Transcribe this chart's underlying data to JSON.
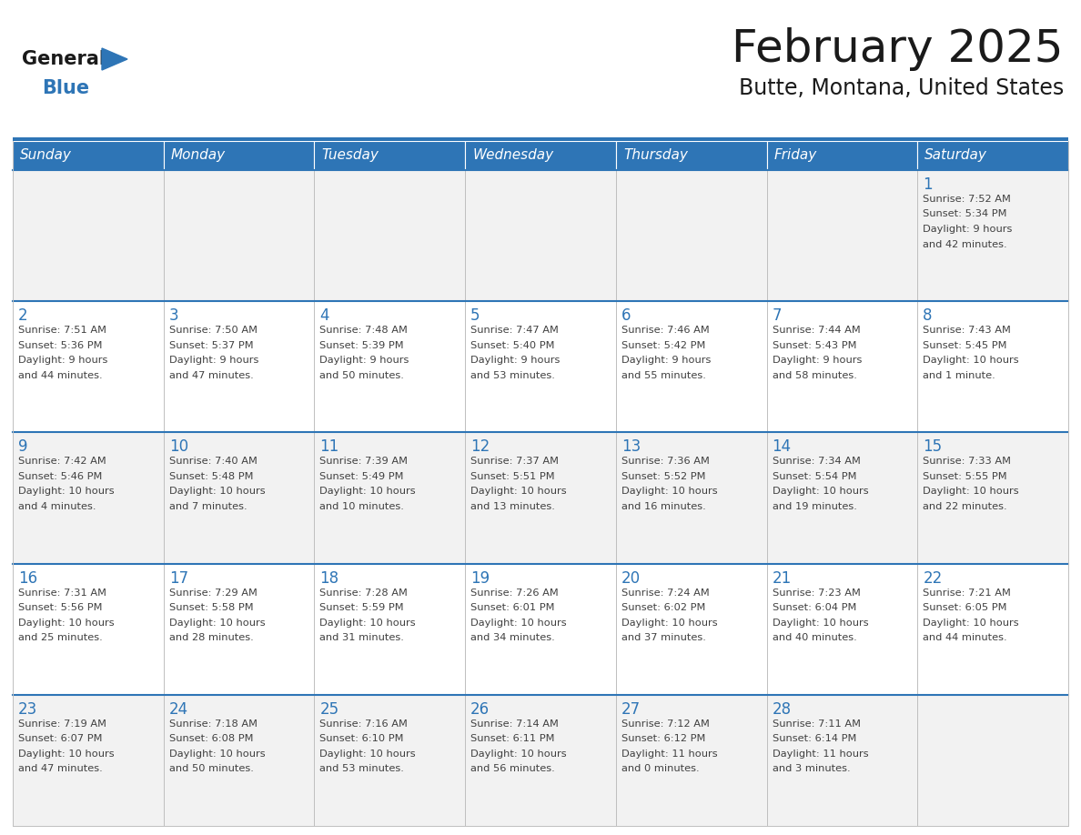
{
  "title": "February 2025",
  "subtitle": "Butte, Montana, United States",
  "header_bg": "#2E75B6",
  "header_text": "#FFFFFF",
  "cell_bg_light": "#F2F2F2",
  "cell_bg_white": "#FFFFFF",
  "day_headers": [
    "Sunday",
    "Monday",
    "Tuesday",
    "Wednesday",
    "Thursday",
    "Friday",
    "Saturday"
  ],
  "title_color": "#1a1a1a",
  "subtitle_color": "#1a1a1a",
  "day_num_color": "#2E75B6",
  "cell_text_color": "#404040",
  "grid_color": "#C0C0C0",
  "logo_black": "#1a1a1a",
  "logo_blue": "#2E75B6",
  "separator_color": "#2E75B6",
  "calendar_data": [
    [
      {
        "day": "",
        "info": ""
      },
      {
        "day": "",
        "info": ""
      },
      {
        "day": "",
        "info": ""
      },
      {
        "day": "",
        "info": ""
      },
      {
        "day": "",
        "info": ""
      },
      {
        "day": "",
        "info": ""
      },
      {
        "day": "1",
        "info": "Sunrise: 7:52 AM\nSunset: 5:34 PM\nDaylight: 9 hours\nand 42 minutes."
      }
    ],
    [
      {
        "day": "2",
        "info": "Sunrise: 7:51 AM\nSunset: 5:36 PM\nDaylight: 9 hours\nand 44 minutes."
      },
      {
        "day": "3",
        "info": "Sunrise: 7:50 AM\nSunset: 5:37 PM\nDaylight: 9 hours\nand 47 minutes."
      },
      {
        "day": "4",
        "info": "Sunrise: 7:48 AM\nSunset: 5:39 PM\nDaylight: 9 hours\nand 50 minutes."
      },
      {
        "day": "5",
        "info": "Sunrise: 7:47 AM\nSunset: 5:40 PM\nDaylight: 9 hours\nand 53 minutes."
      },
      {
        "day": "6",
        "info": "Sunrise: 7:46 AM\nSunset: 5:42 PM\nDaylight: 9 hours\nand 55 minutes."
      },
      {
        "day": "7",
        "info": "Sunrise: 7:44 AM\nSunset: 5:43 PM\nDaylight: 9 hours\nand 58 minutes."
      },
      {
        "day": "8",
        "info": "Sunrise: 7:43 AM\nSunset: 5:45 PM\nDaylight: 10 hours\nand 1 minute."
      }
    ],
    [
      {
        "day": "9",
        "info": "Sunrise: 7:42 AM\nSunset: 5:46 PM\nDaylight: 10 hours\nand 4 minutes."
      },
      {
        "day": "10",
        "info": "Sunrise: 7:40 AM\nSunset: 5:48 PM\nDaylight: 10 hours\nand 7 minutes."
      },
      {
        "day": "11",
        "info": "Sunrise: 7:39 AM\nSunset: 5:49 PM\nDaylight: 10 hours\nand 10 minutes."
      },
      {
        "day": "12",
        "info": "Sunrise: 7:37 AM\nSunset: 5:51 PM\nDaylight: 10 hours\nand 13 minutes."
      },
      {
        "day": "13",
        "info": "Sunrise: 7:36 AM\nSunset: 5:52 PM\nDaylight: 10 hours\nand 16 minutes."
      },
      {
        "day": "14",
        "info": "Sunrise: 7:34 AM\nSunset: 5:54 PM\nDaylight: 10 hours\nand 19 minutes."
      },
      {
        "day": "15",
        "info": "Sunrise: 7:33 AM\nSunset: 5:55 PM\nDaylight: 10 hours\nand 22 minutes."
      }
    ],
    [
      {
        "day": "16",
        "info": "Sunrise: 7:31 AM\nSunset: 5:56 PM\nDaylight: 10 hours\nand 25 minutes."
      },
      {
        "day": "17",
        "info": "Sunrise: 7:29 AM\nSunset: 5:58 PM\nDaylight: 10 hours\nand 28 minutes."
      },
      {
        "day": "18",
        "info": "Sunrise: 7:28 AM\nSunset: 5:59 PM\nDaylight: 10 hours\nand 31 minutes."
      },
      {
        "day": "19",
        "info": "Sunrise: 7:26 AM\nSunset: 6:01 PM\nDaylight: 10 hours\nand 34 minutes."
      },
      {
        "day": "20",
        "info": "Sunrise: 7:24 AM\nSunset: 6:02 PM\nDaylight: 10 hours\nand 37 minutes."
      },
      {
        "day": "21",
        "info": "Sunrise: 7:23 AM\nSunset: 6:04 PM\nDaylight: 10 hours\nand 40 minutes."
      },
      {
        "day": "22",
        "info": "Sunrise: 7:21 AM\nSunset: 6:05 PM\nDaylight: 10 hours\nand 44 minutes."
      }
    ],
    [
      {
        "day": "23",
        "info": "Sunrise: 7:19 AM\nSunset: 6:07 PM\nDaylight: 10 hours\nand 47 minutes."
      },
      {
        "day": "24",
        "info": "Sunrise: 7:18 AM\nSunset: 6:08 PM\nDaylight: 10 hours\nand 50 minutes."
      },
      {
        "day": "25",
        "info": "Sunrise: 7:16 AM\nSunset: 6:10 PM\nDaylight: 10 hours\nand 53 minutes."
      },
      {
        "day": "26",
        "info": "Sunrise: 7:14 AM\nSunset: 6:11 PM\nDaylight: 10 hours\nand 56 minutes."
      },
      {
        "day": "27",
        "info": "Sunrise: 7:12 AM\nSunset: 6:12 PM\nDaylight: 11 hours\nand 0 minutes."
      },
      {
        "day": "28",
        "info": "Sunrise: 7:11 AM\nSunset: 6:14 PM\nDaylight: 11 hours\nand 3 minutes."
      },
      {
        "day": "",
        "info": ""
      }
    ]
  ]
}
